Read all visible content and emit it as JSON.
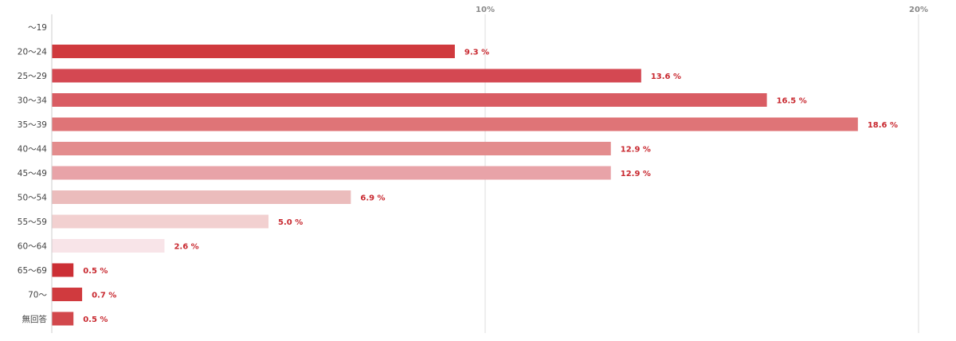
{
  "chart_data": {
    "type": "bar",
    "orientation": "horizontal",
    "categories": [
      "〜19",
      "20〜24",
      "25〜29",
      "30〜34",
      "35〜39",
      "40〜44",
      "45〜49",
      "50〜54",
      "55〜59",
      "60〜64",
      "65〜69",
      "70〜",
      "無回答"
    ],
    "values": [
      0,
      9.3,
      13.6,
      16.5,
      18.6,
      12.9,
      12.9,
      6.9,
      5.0,
      2.6,
      0.5,
      0.7,
      0.5
    ],
    "value_labels": [
      "",
      "9.3 %",
      "13.6 %",
      "16.5 %",
      "18.6 %",
      "12.9 %",
      "12.9 %",
      "6.9 %",
      "5.0 %",
      "2.6 %",
      "0.5 %",
      "0.7 %",
      "0.5 %"
    ],
    "bar_colors": [
      "#d03a3e",
      "#d03a3e",
      "#d44852",
      "#d95c63",
      "#df7477",
      "#e38c8d",
      "#e8a3a8",
      "#ebbcbc",
      "#f2d0d0",
      "#f8e4e8",
      "#cc2f35",
      "#d03a3e",
      "#d2484c"
    ],
    "xticks": [
      10,
      20
    ],
    "xtick_labels": [
      "10%",
      "20%"
    ],
    "xlim": [
      0,
      20
    ],
    "grid": true,
    "title": "",
    "xlabel": "",
    "ylabel": ""
  },
  "colors": {
    "value_label": "#c8282f",
    "grid": "#dddddd",
    "axis": "#cccccc"
  }
}
